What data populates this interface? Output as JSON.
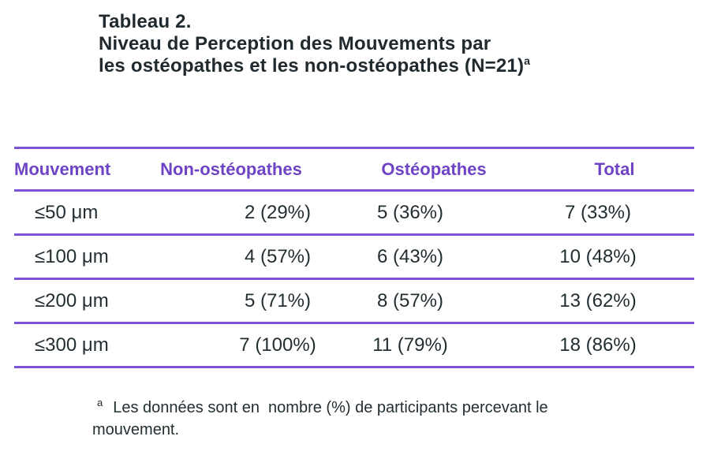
{
  "title": {
    "line1": "Tableau 2.",
    "line2": "Niveau de Perception des Mouvements par",
    "line3": "les ostéopathes et les non-ostéopathes (N=21)",
    "note_marker": "a"
  },
  "table": {
    "headers": [
      "Mouvement",
      "Non-ostéopathes",
      "Ostéopathes",
      "Total"
    ],
    "rows": [
      {
        "cells": [
          "≤50 μm",
          "2 (29%)",
          "5 (36%)",
          "7 (33%)"
        ]
      },
      {
        "cells": [
          "≤100 μm",
          "4 (57%)",
          "6 (43%)",
          "10 (48%)"
        ]
      },
      {
        "cells": [
          "≤200 μm",
          "5 (71%)",
          "8 (57%)",
          "13 (62%)"
        ]
      },
      {
        "cells": [
          "≤300 μm",
          "7 (100%)",
          "11 (79%)",
          "18 (86%)"
        ]
      }
    ]
  },
  "footnote": {
    "marker": "a",
    "line1": "Les données sont en  nombre (%) de participants percevant le",
    "line2": "mouvement."
  },
  "colors": {
    "accent_purple_text": "#6e44c4",
    "accent_purple_line": "#7d53d6",
    "text_dark": "#212b30",
    "background": "#ffffff"
  }
}
